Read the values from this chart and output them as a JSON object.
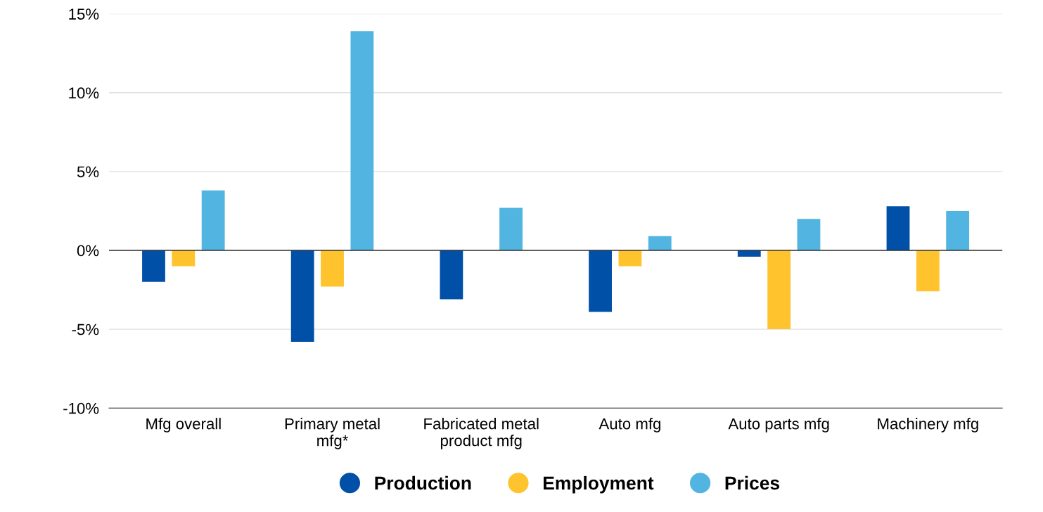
{
  "chart_data": {
    "type": "bar",
    "categories": [
      "Mfg overall",
      "Primary metal\nmfg*",
      "Fabricated metal\nproduct mfg",
      "Auto mfg",
      "Auto parts mfg",
      "Machinery mfg"
    ],
    "series": [
      {
        "name": "Production",
        "color": "#0050a8",
        "values": [
          -2.0,
          -5.8,
          -3.1,
          -3.9,
          -0.4,
          2.8
        ]
      },
      {
        "name": "Employment",
        "color": "#fec32d",
        "values": [
          -1.0,
          -2.3,
          0,
          -1.0,
          -5.0,
          -2.6
        ]
      },
      {
        "name": "Prices",
        "color": "#52b4e0",
        "values": [
          3.8,
          13.9,
          2.7,
          0.9,
          2.0,
          2.5
        ]
      }
    ],
    "ylim": [
      -10,
      15
    ],
    "yticks": [
      {
        "value": -10,
        "label": "-10%"
      },
      {
        "value": -5,
        "label": "-5%"
      },
      {
        "value": 0,
        "label": "0%"
      },
      {
        "value": 5,
        "label": "5%"
      },
      {
        "value": 10,
        "label": "10%"
      },
      {
        "value": 15,
        "label": "15%"
      }
    ],
    "grid": "y",
    "legend": "bottom"
  }
}
